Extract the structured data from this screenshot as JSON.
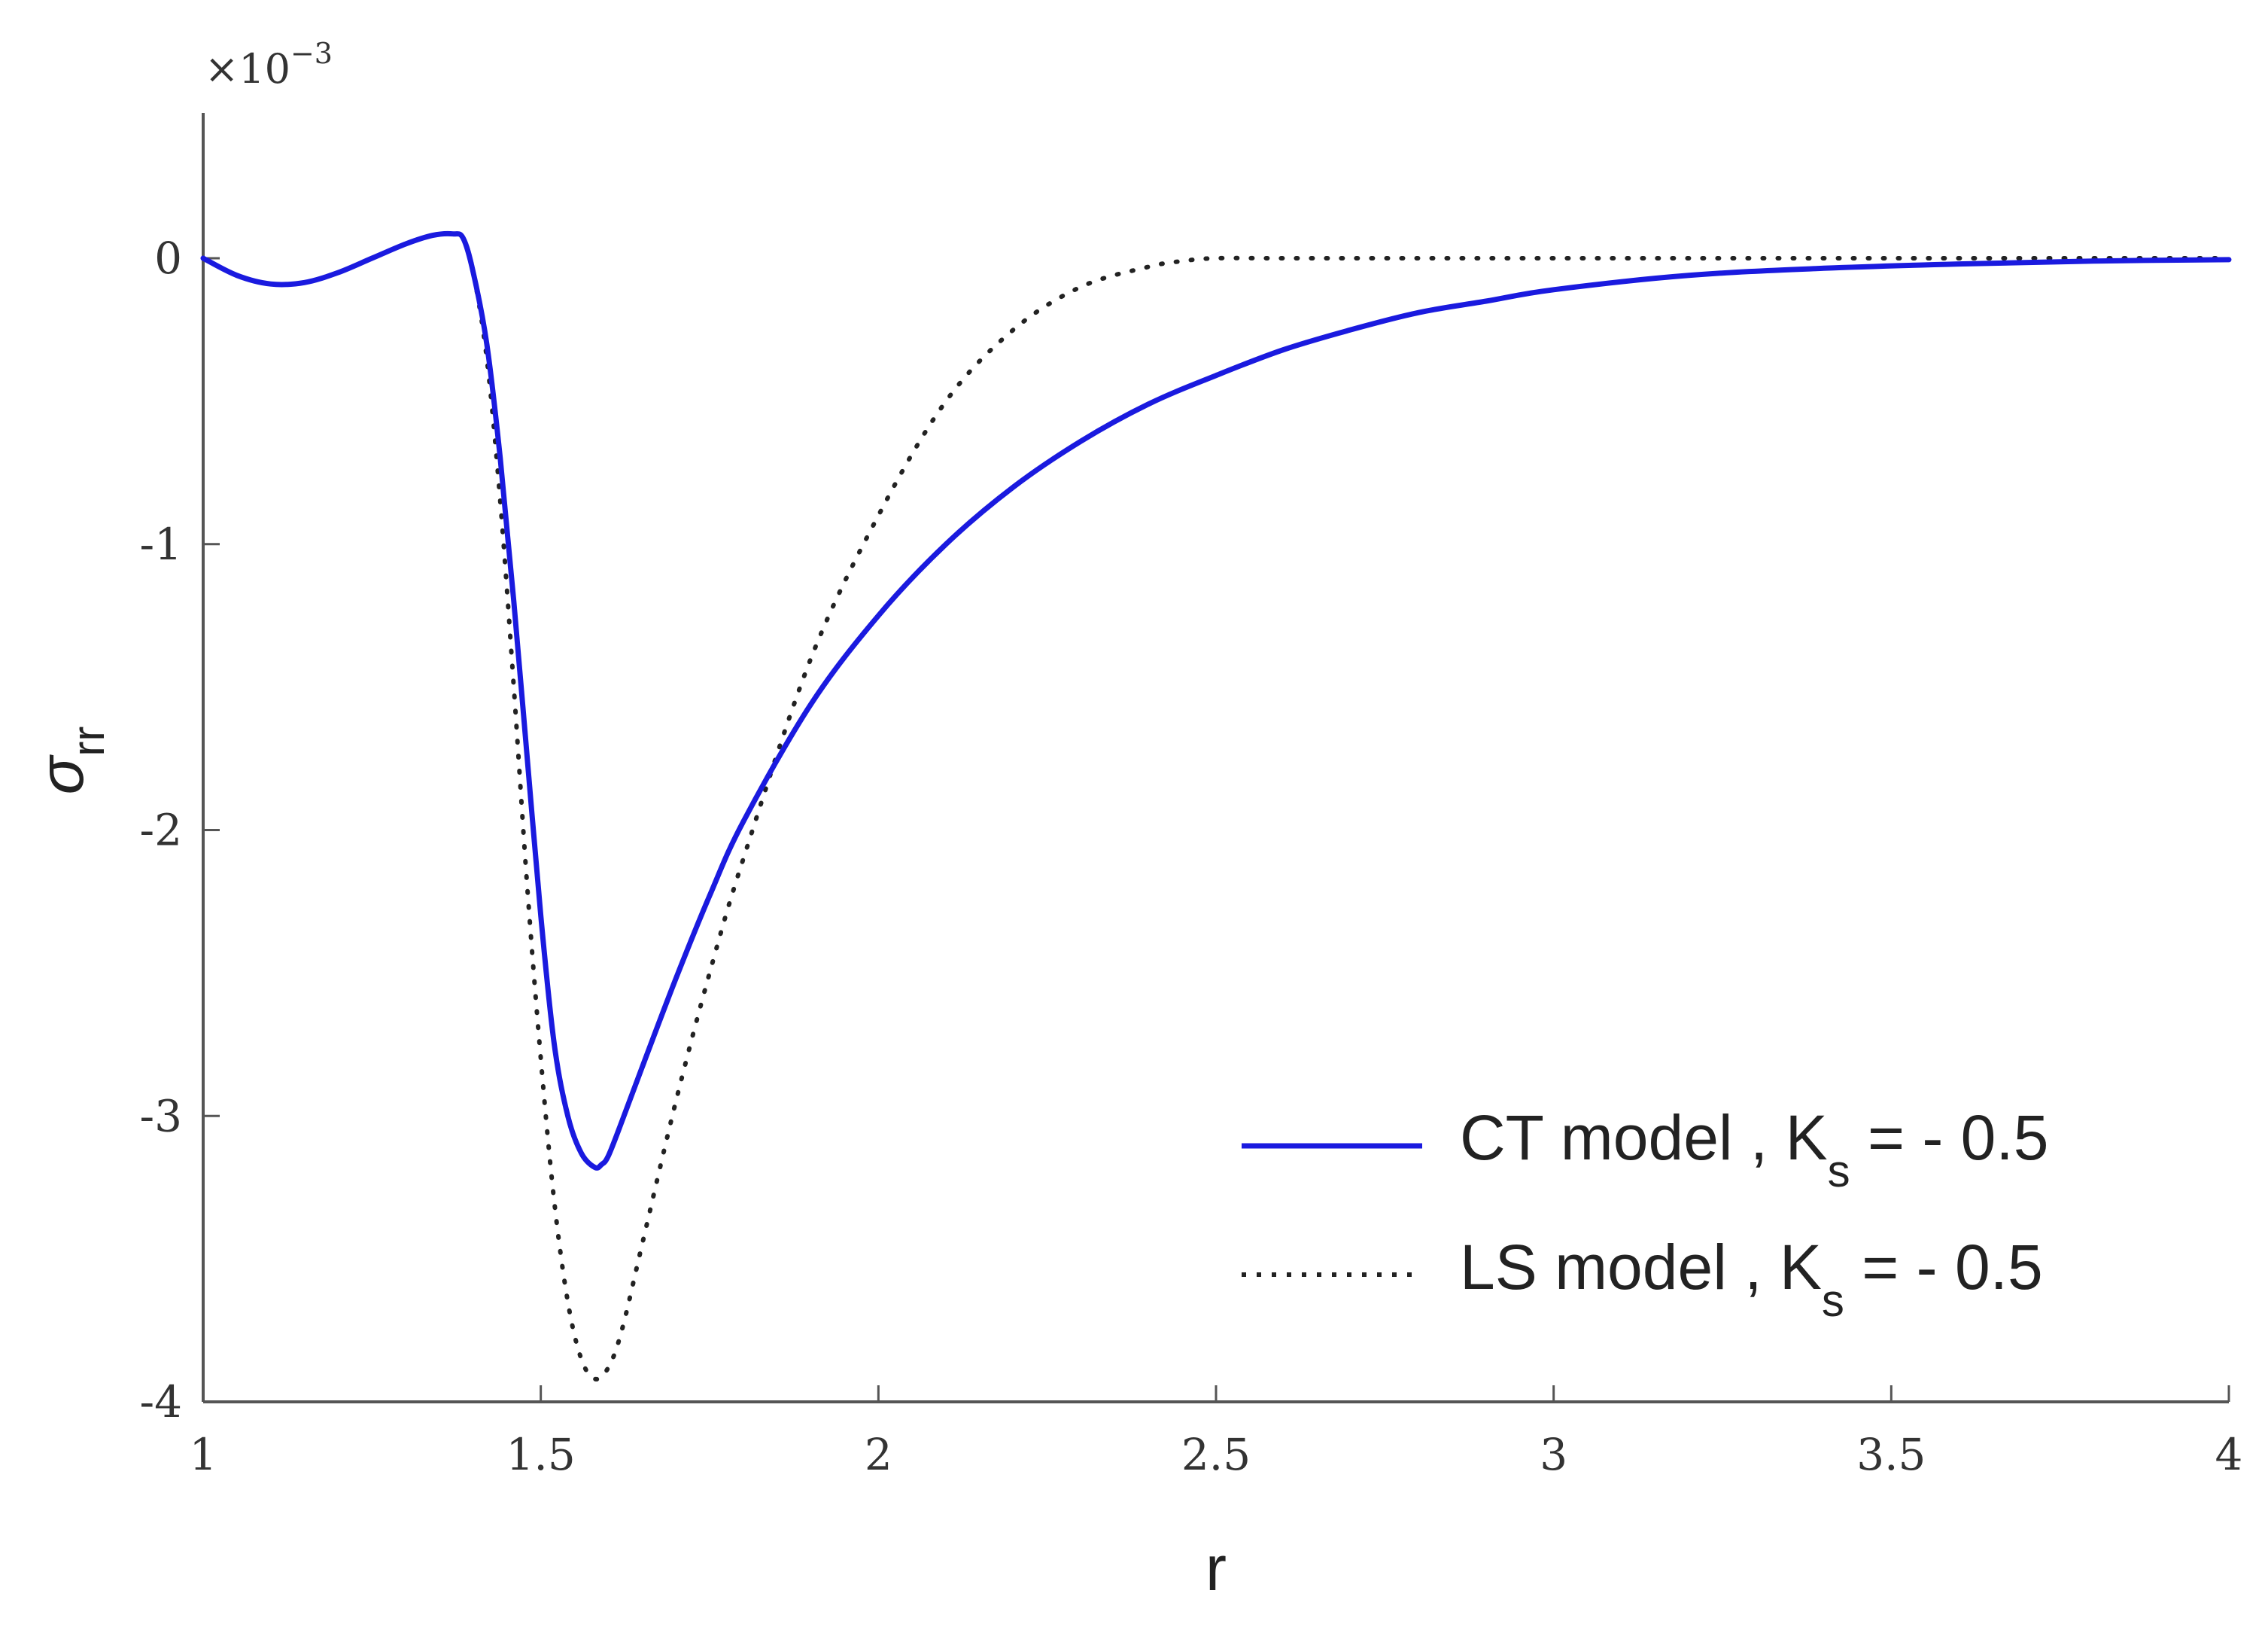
{
  "chart_data": {
    "type": "line",
    "xlabel": "r",
    "ylabel": "σ",
    "ylabel_subscript": "rr",
    "y_multiplier_base": "×10",
    "y_multiplier_exponent": "−3",
    "xlim": [
      1,
      4
    ],
    "ylim": [
      -4,
      0.5
    ],
    "x_ticks": [
      1,
      1.5,
      2,
      2.5,
      3,
      3.5,
      4
    ],
    "x_tick_labels": [
      "1",
      "1.5",
      "2",
      "2.5",
      "3",
      "3.5",
      "4"
    ],
    "y_ticks": [
      0,
      -1,
      -2,
      -3,
      -4
    ],
    "y_tick_labels": [
      "0",
      "-1",
      "-2",
      "-3",
      "-4"
    ],
    "grid": false,
    "legend_position": "bottom-right",
    "series": [
      {
        "name_main": "CT model , K",
        "name_sub": "s",
        "name_tail": " = - 0.5",
        "color": "#1a1adf",
        "style": "solid",
        "x": [
          1.0,
          1.05,
          1.1,
          1.15,
          1.2,
          1.25,
          1.3,
          1.34,
          1.37,
          1.385,
          1.4,
          1.42,
          1.44,
          1.46,
          1.48,
          1.5,
          1.52,
          1.54,
          1.56,
          1.58,
          1.59,
          1.6,
          1.62,
          1.65,
          1.7,
          1.75,
          1.8,
          1.9,
          2.0,
          2.1,
          2.2,
          2.3,
          2.4,
          2.5,
          2.6,
          2.7,
          2.8,
          2.9,
          3.0,
          3.2,
          3.4,
          3.6,
          3.8,
          4.0
        ],
        "y": [
          0.0,
          -0.06,
          -0.09,
          -0.085,
          -0.05,
          0.0,
          0.05,
          0.08,
          0.085,
          0.07,
          -0.05,
          -0.3,
          -0.7,
          -1.2,
          -1.75,
          -2.3,
          -2.75,
          -3.0,
          -3.13,
          -3.18,
          -3.17,
          -3.14,
          -3.02,
          -2.83,
          -2.52,
          -2.23,
          -1.97,
          -1.56,
          -1.25,
          -1.0,
          -0.8,
          -0.64,
          -0.51,
          -0.41,
          -0.32,
          -0.25,
          -0.19,
          -0.15,
          -0.11,
          -0.06,
          -0.035,
          -0.02,
          -0.01,
          -0.005
        ]
      },
      {
        "name_main": "LS model , K",
        "name_sub": "s",
        "name_tail": " = - 0.5",
        "color": "#222222",
        "style": "dotted",
        "x": [
          1.0,
          1.05,
          1.1,
          1.15,
          1.2,
          1.25,
          1.3,
          1.34,
          1.37,
          1.385,
          1.4,
          1.42,
          1.44,
          1.46,
          1.48,
          1.5,
          1.52,
          1.54,
          1.56,
          1.58,
          1.6,
          1.62,
          1.65,
          1.7,
          1.75,
          1.8,
          1.9,
          2.0,
          2.1,
          2.2,
          2.3,
          2.4,
          2.45,
          2.5,
          2.6,
          2.8,
          3.0,
          3.5,
          4.0
        ],
        "y": [
          0.0,
          -0.06,
          -0.09,
          -0.085,
          -0.05,
          0.0,
          0.05,
          0.08,
          0.085,
          0.07,
          -0.05,
          -0.35,
          -0.85,
          -1.5,
          -2.2,
          -2.8,
          -3.3,
          -3.65,
          -3.85,
          -3.92,
          -3.88,
          -3.75,
          -3.45,
          -2.95,
          -2.5,
          -2.1,
          -1.4,
          -0.9,
          -0.5,
          -0.25,
          -0.1,
          -0.03,
          -0.01,
          0.0,
          0.0,
          0.0,
          0.0,
          0.0,
          0.0
        ]
      }
    ]
  }
}
